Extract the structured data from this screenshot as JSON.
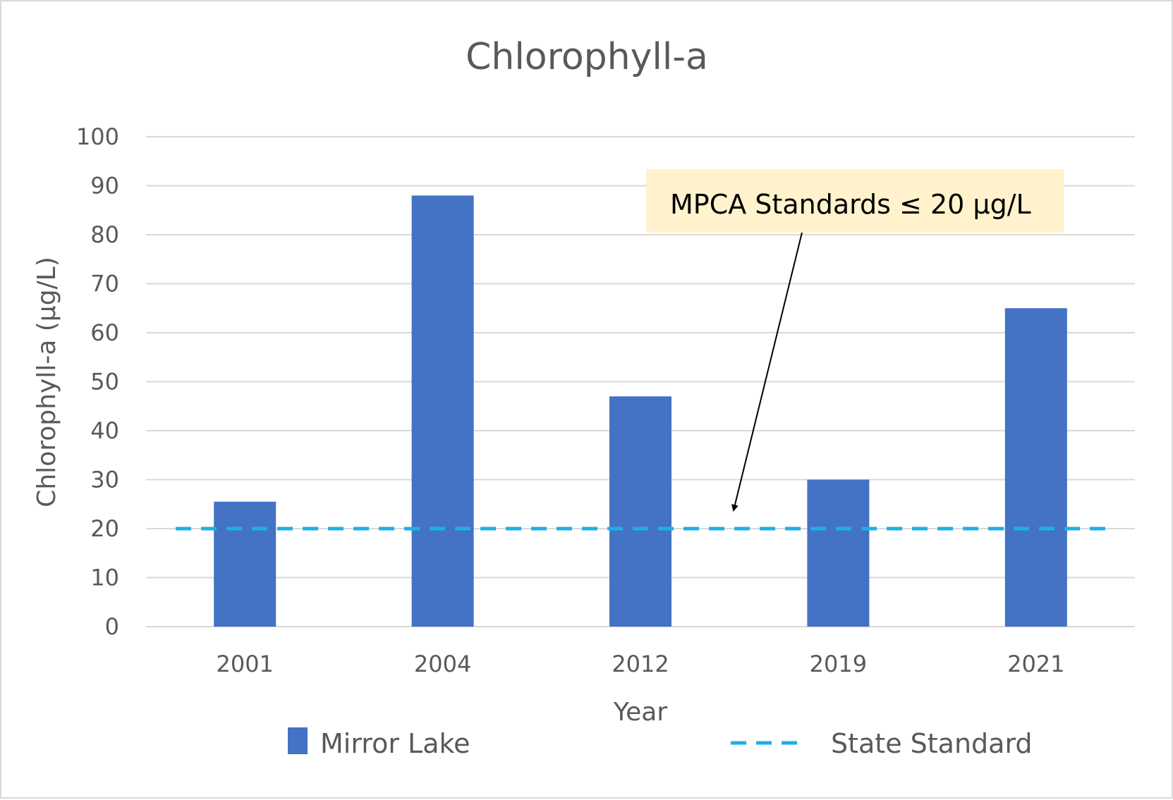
{
  "chart_data": {
    "type": "bar",
    "title": "Chlorophyll-a",
    "xlabel": "Year",
    "ylabel": "Chlorophyll-a (µg/L)",
    "categories": [
      "2001",
      "2004",
      "2012",
      "2019",
      "2021"
    ],
    "ylim": [
      0,
      100
    ],
    "yticks": [
      0,
      10,
      20,
      30,
      40,
      50,
      60,
      70,
      80,
      90,
      100
    ],
    "grid": true,
    "legend_position": "bottom",
    "series": [
      {
        "name": "Mirror Lake",
        "type": "bar",
        "color": "#4472c4",
        "values": [
          25.5,
          88,
          47,
          30,
          65
        ]
      },
      {
        "name": "State Standard",
        "type": "line",
        "style": "dashed",
        "color": "#1cb0e8",
        "value": 20
      }
    ],
    "annotation": {
      "text": "MPCA Standards ≤ 20 µg/L",
      "background": "#fff2cc",
      "points_to": {
        "x_between": [
          "2012",
          "2019"
        ],
        "y": 20
      }
    }
  }
}
